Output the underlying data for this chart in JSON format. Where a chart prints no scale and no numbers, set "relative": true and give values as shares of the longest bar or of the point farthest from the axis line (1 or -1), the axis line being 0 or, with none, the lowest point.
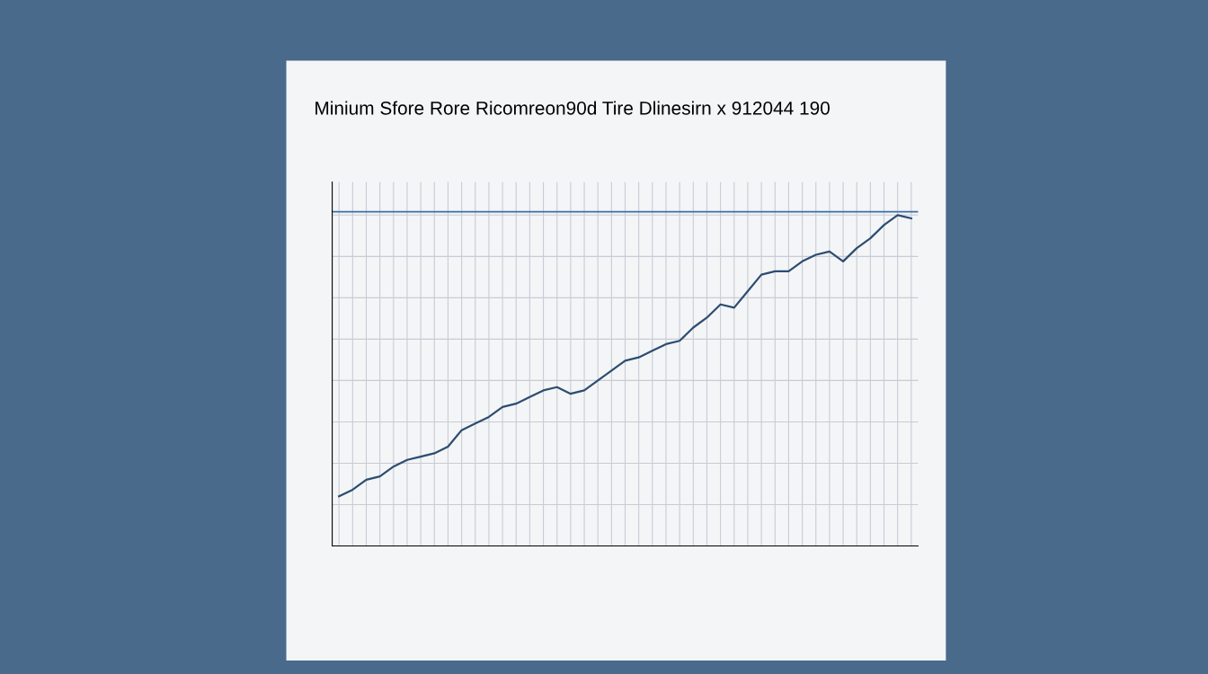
{
  "chart_data": {
    "type": "line",
    "title": "Minium Sfore Rore Ricomreon90d Tire Dlinesirn x 912044 190",
    "relative": true,
    "grid": true,
    "categories": [
      null,
      null,
      null,
      null,
      null,
      null,
      null,
      null,
      null,
      null,
      null,
      null,
      null,
      null,
      null,
      null,
      null,
      null,
      null,
      null,
      null,
      null,
      null,
      null,
      null,
      null,
      null,
      null,
      null,
      null,
      null,
      null,
      null,
      null,
      null,
      null,
      null,
      null,
      null,
      null,
      null,
      null,
      null
    ],
    "series": [
      {
        "color": "#2d4d70",
        "values": [
          0.15,
          0.17,
          0.2,
          0.21,
          0.24,
          0.26,
          0.27,
          0.28,
          0.3,
          0.35,
          0.37,
          0.39,
          0.42,
          0.43,
          0.45,
          0.47,
          0.48,
          0.46,
          0.47,
          0.5,
          0.53,
          0.56,
          0.57,
          0.59,
          0.61,
          0.62,
          0.66,
          0.69,
          0.73,
          0.72,
          0.77,
          0.82,
          0.83,
          0.83,
          0.86,
          0.88,
          0.89,
          0.86,
          0.9,
          0.93,
          0.97,
          1.0,
          0.99
        ]
      }
    ],
    "ref_lines": [
      {
        "axis": "y",
        "value": 1.01,
        "color": "#3b6fa8"
      }
    ]
  }
}
